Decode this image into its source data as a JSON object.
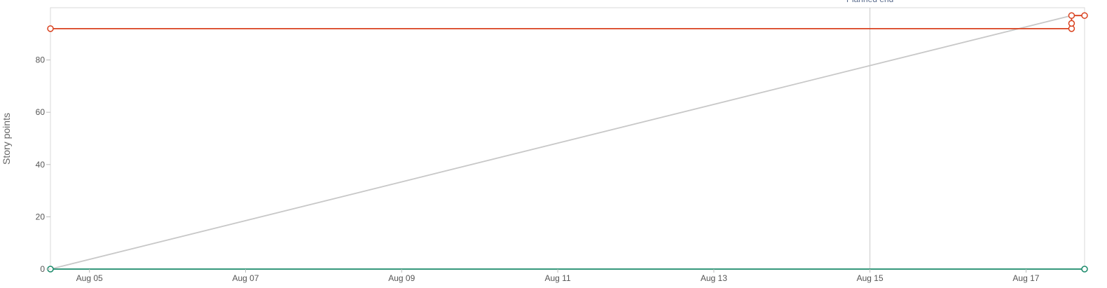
{
  "chart_data": {
    "type": "line",
    "ylabel": "Story points",
    "ylim": [
      0,
      100
    ],
    "yticks": [
      0,
      20,
      40,
      60,
      80
    ],
    "xlim": [
      "2024-08-04T12:00",
      "2024-08-17T18:00"
    ],
    "xticks": [
      "Aug 05",
      "Aug 07",
      "Aug 09",
      "Aug 11",
      "Aug 13",
      "Aug 15",
      "Aug 17"
    ],
    "grid": false,
    "annotations": [
      {
        "label": "Planned end",
        "x": "2024-08-15T00:00"
      }
    ],
    "series": [
      {
        "color": "#c8c8c8",
        "markers": false,
        "points": [
          {
            "x": "2024-08-04T12:00",
            "y": 0
          },
          {
            "x": "2024-08-17T14:00",
            "y": 97
          }
        ]
      },
      {
        "color": "#d9411e",
        "markers": true,
        "points": [
          {
            "x": "2024-08-04T12:00",
            "y": 92
          },
          {
            "x": "2024-08-17T14:00",
            "y": 92
          },
          {
            "x": "2024-08-17T14:00",
            "y": 94
          },
          {
            "x": "2024-08-17T14:00",
            "y": 97
          },
          {
            "x": "2024-08-17T18:00",
            "y": 97
          }
        ]
      },
      {
        "color": "#1a8a6a",
        "markers": true,
        "points": [
          {
            "x": "2024-08-04T12:00",
            "y": 0
          },
          {
            "x": "2024-08-17T18:00",
            "y": 0
          }
        ]
      }
    ]
  }
}
